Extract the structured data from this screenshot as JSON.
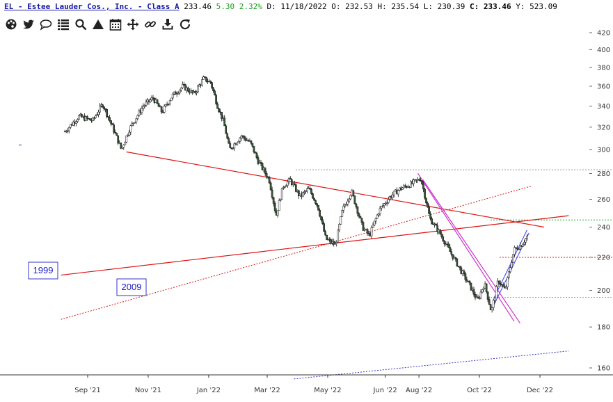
{
  "header": {
    "symbol_name": "EL - Estee Lauder Cos., Inc. - Class A",
    "last": "233.46",
    "change": "5.30",
    "change_pct": "2.32%",
    "date": "D: 11/18/2022",
    "open": "O: 232.53",
    "high": "H: 235.54",
    "low": "L: 230.39",
    "close_label": "C:",
    "close": "233.46",
    "tail": "Y: 523.09"
  },
  "toolbar": {
    "icons": [
      "palette-icon",
      "twitter-icon",
      "comment-icon",
      "list-icon",
      "search-icon",
      "triangle-icon",
      "calendar-icon",
      "move-icon",
      "link-icon",
      "download-icon",
      "refresh-icon"
    ]
  },
  "chart_data": {
    "type": "candlestick",
    "y_scale": "log",
    "ylim": [
      152,
      428
    ],
    "yticks": [
      "420",
      "400",
      "380",
      "360",
      "340",
      "320",
      "300",
      "280",
      "260",
      "240",
      "220",
      "200",
      "180",
      "160"
    ],
    "x_axis_labels": [
      "Sep '21",
      "Nov '21",
      "Jan '22",
      "Mar '22",
      "May '22",
      "Jun '22",
      "Aug '22",
      "Oct '22",
      "Dec '22"
    ],
    "price_path": [
      [
        "2021-08-09",
        316
      ],
      [
        "2021-08-23",
        330
      ],
      [
        "2021-09-06",
        326
      ],
      [
        "2021-09-16",
        342
      ],
      [
        "2021-09-27",
        318
      ],
      [
        "2021-10-05",
        300
      ],
      [
        "2021-10-13",
        318
      ],
      [
        "2021-10-27",
        340
      ],
      [
        "2021-11-06",
        348
      ],
      [
        "2021-11-15",
        334
      ],
      [
        "2021-11-25",
        350
      ],
      [
        "2021-12-06",
        360
      ],
      [
        "2021-12-17",
        352
      ],
      [
        "2021-12-27",
        368
      ],
      [
        "2022-01-03",
        364
      ],
      [
        "2022-01-10",
        340
      ],
      [
        "2022-01-16",
        325
      ],
      [
        "2022-01-22",
        300
      ],
      [
        "2022-02-03",
        312
      ],
      [
        "2022-02-12",
        306
      ],
      [
        "2022-02-20",
        290
      ],
      [
        "2022-03-03",
        275
      ],
      [
        "2022-03-10",
        248
      ],
      [
        "2022-03-17",
        270
      ],
      [
        "2022-03-24",
        275
      ],
      [
        "2022-04-03",
        262
      ],
      [
        "2022-04-12",
        268
      ],
      [
        "2022-04-21",
        255
      ],
      [
        "2022-04-29",
        232
      ],
      [
        "2022-05-09",
        228
      ],
      [
        "2022-05-16",
        252
      ],
      [
        "2022-05-25",
        266
      ],
      [
        "2022-06-05",
        240
      ],
      [
        "2022-06-12",
        234
      ],
      [
        "2022-06-22",
        252
      ],
      [
        "2022-07-03",
        262
      ],
      [
        "2022-07-13",
        268
      ],
      [
        "2022-07-25",
        272
      ],
      [
        "2022-08-03",
        276
      ],
      [
        "2022-08-12",
        246
      ],
      [
        "2022-08-22",
        236
      ],
      [
        "2022-09-01",
        224
      ],
      [
        "2022-09-12",
        212
      ],
      [
        "2022-09-22",
        202
      ],
      [
        "2022-09-29",
        194
      ],
      [
        "2022-10-06",
        204
      ],
      [
        "2022-10-13",
        188
      ],
      [
        "2022-10-20",
        206
      ],
      [
        "2022-10-27",
        200
      ],
      [
        "2022-11-05",
        225
      ],
      [
        "2022-11-12",
        228
      ],
      [
        "2022-11-18",
        233.46
      ]
    ],
    "annotations": {
      "horizontal_levels": [
        {
          "price": 283,
          "color": "#999999",
          "style": "dotted"
        },
        {
          "price": 245,
          "color": "#22aa22",
          "style": "dotted"
        },
        {
          "price": 220,
          "color": "#dd2222",
          "style": "dotted"
        },
        {
          "price": 196,
          "color": "#999999",
          "style": "dotted"
        }
      ],
      "trendlines": [
        {
          "from": [
            "2021-08-05",
            209
          ],
          "to": [
            "2022-12-30",
            248
          ],
          "color": "#dd1111",
          "style": "solid",
          "label": "1999"
        },
        {
          "from": [
            "2021-08-05",
            184
          ],
          "to": [
            "2022-11-22",
            270
          ],
          "color": "#dd1111",
          "style": "dotted",
          "label": "2009"
        },
        {
          "from": [
            "2021-10-10",
            298
          ],
          "to": [
            "2022-12-05",
            240
          ],
          "color": "#dd1111",
          "style": "solid"
        },
        {
          "from": [
            "2022-03-28",
            155
          ],
          "to": [
            "2022-12-30",
            168
          ],
          "color": "#3333cc",
          "style": "dotted"
        },
        {
          "from": [
            "2022-07-31",
            280
          ],
          "to": [
            "2022-11-05",
            183
          ],
          "color": "#cc33cc",
          "style": "solid"
        },
        {
          "from": [
            "2022-08-05",
            275
          ],
          "to": [
            "2022-11-11",
            182
          ],
          "color": "#cc33cc",
          "style": "solid"
        },
        {
          "from": [
            "2022-10-14",
            190
          ],
          "to": [
            "2022-11-20",
            236
          ],
          "color": "#5555ee",
          "style": "solid"
        },
        {
          "from": [
            "2022-10-16",
            196
          ],
          "to": [
            "2022-11-18",
            238
          ],
          "color": "#5555ee",
          "style": "solid"
        }
      ]
    }
  }
}
